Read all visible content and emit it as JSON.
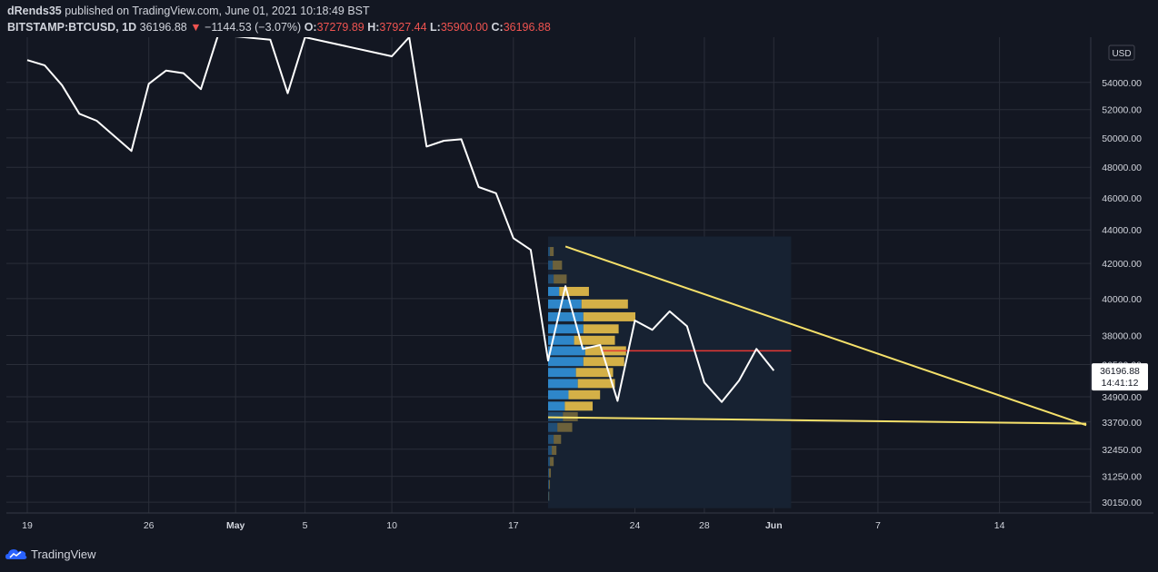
{
  "header": {
    "author": "dRends35",
    "published_text": "published on TradingView.com, June 01, 2021 10:18:49 BST",
    "symbol": "BITSTAMP:BTCUSD, 1D",
    "last_price": "36196.88",
    "change": "−1144.53 (−3.07%)",
    "open_label": "O:",
    "open_value": "37279.89",
    "high_label": "H:",
    "high_value": "37927.44",
    "low_label": "L:",
    "low_value": "35900.00",
    "close_label": "C:",
    "close_value": "36196.88"
  },
  "footer": {
    "brand": "TradingView"
  },
  "colors": {
    "background": "#131722",
    "grid": "#2a2e39",
    "price_line": "#ffffff",
    "trendline": "#f5e06a",
    "poc_line": "#e53935",
    "volume_up": "#2e86c9",
    "volume_down": "#d4b047",
    "profile_bg": "#172232",
    "axis_text": "#d1d4dc"
  },
  "chart_data": {
    "type": "line",
    "currency_label": "USD",
    "y_scale": "log",
    "ylim": [
      29700,
      57500
    ],
    "y_ticks": [
      {
        "value": 54000,
        "label": "54000.00"
      },
      {
        "value": 52000,
        "label": "52000.00"
      },
      {
        "value": 50000,
        "label": "50000.00"
      },
      {
        "value": 48000,
        "label": "48000.00"
      },
      {
        "value": 46000,
        "label": "46000.00"
      },
      {
        "value": 44000,
        "label": "44000.00"
      },
      {
        "value": 42000,
        "label": "42000.00"
      },
      {
        "value": 40000,
        "label": "40000.00"
      },
      {
        "value": 38000,
        "label": "38000.00"
      },
      {
        "value": 36500,
        "label": "36500.00"
      },
      {
        "value": 34900,
        "label": "34900.00"
      },
      {
        "value": 33700,
        "label": "33700.00"
      },
      {
        "value": 32450,
        "label": "32450.00"
      },
      {
        "value": 31250,
        "label": "31250.00"
      },
      {
        "value": 30150,
        "label": "30150.00"
      }
    ],
    "x_ticks": [
      {
        "label": "19",
        "date": "2021-04-19",
        "bold": false
      },
      {
        "label": "26",
        "date": "2021-04-26",
        "bold": false
      },
      {
        "label": "May",
        "date": "2021-05-01",
        "bold": true
      },
      {
        "label": "5",
        "date": "2021-05-05",
        "bold": false
      },
      {
        "label": "10",
        "date": "2021-05-10",
        "bold": false
      },
      {
        "label": "17",
        "date": "2021-05-17",
        "bold": false
      },
      {
        "label": "24",
        "date": "2021-05-24",
        "bold": false
      },
      {
        "label": "28",
        "date": "2021-05-28",
        "bold": false
      },
      {
        "label": "Jun",
        "date": "2021-06-01",
        "bold": true
      },
      {
        "label": "7",
        "date": "2021-06-07",
        "bold": false
      },
      {
        "label": "14",
        "date": "2021-06-14",
        "bold": false
      }
    ],
    "series": [
      {
        "values": [
          [
            "2021-04-19",
            55700
          ],
          [
            "2021-04-20",
            55300
          ],
          [
            "2021-04-21",
            53800
          ],
          [
            "2021-04-22",
            51700
          ],
          [
            "2021-04-23",
            51200
          ],
          [
            "2021-04-25",
            49100
          ],
          [
            "2021-04-26",
            53900
          ],
          [
            "2021-04-27",
            54900
          ],
          [
            "2021-04-28",
            54700
          ],
          [
            "2021-04-29",
            53500
          ],
          [
            "2021-04-30",
            57700
          ],
          [
            "2021-05-03",
            57300
          ],
          [
            "2021-05-04",
            53200
          ],
          [
            "2021-05-05",
            57500
          ],
          [
            "2021-05-10",
            56000
          ],
          [
            "2021-05-11",
            57500
          ],
          [
            "2021-05-12",
            49400
          ],
          [
            "2021-05-13",
            49800
          ],
          [
            "2021-05-14",
            49900
          ],
          [
            "2021-05-15",
            46700
          ],
          [
            "2021-05-16",
            46300
          ],
          [
            "2021-05-17",
            43500
          ],
          [
            "2021-05-18",
            42800
          ],
          [
            "2021-05-19",
            36700
          ],
          [
            "2021-05-20",
            40700
          ],
          [
            "2021-05-21",
            37300
          ],
          [
            "2021-05-22",
            37500
          ],
          [
            "2021-05-23",
            34700
          ],
          [
            "2021-05-24",
            38800
          ],
          [
            "2021-05-25",
            38300
          ],
          [
            "2021-05-26",
            39300
          ],
          [
            "2021-05-27",
            38500
          ],
          [
            "2021-05-28",
            35600
          ],
          [
            "2021-05-29",
            34650
          ],
          [
            "2021-05-30",
            35700
          ],
          [
            "2021-05-31",
            37300
          ],
          [
            "2021-06-01",
            36196.88
          ]
        ]
      }
    ],
    "last_price_label": "36196.88",
    "countdown_label": "14:41:12",
    "poc_line": {
      "price": 37200,
      "from": "2021-05-19",
      "to": "2021-06-02"
    },
    "trendlines": [
      {
        "from": [
          "2021-05-20",
          43000
        ],
        "to": [
          "2021-06-19",
          33550
        ]
      },
      {
        "from": [
          "2021-05-19",
          33920
        ],
        "to": [
          "2021-06-19",
          33620
        ]
      }
    ],
    "volume_profile": {
      "range_dates": [
        "2021-05-19",
        "2021-06-02"
      ],
      "range_prices": [
        29900,
        43600
      ],
      "rows": [
        {
          "price": 42700,
          "up": 0.1,
          "down": 0.2
        },
        {
          "price": 41900,
          "up": 0.25,
          "down": 0.5
        },
        {
          "price": 41100,
          "up": 0.3,
          "down": 0.7
        },
        {
          "price": 40400,
          "up": 0.6,
          "down": 1.6
        },
        {
          "price": 39700,
          "up": 1.8,
          "down": 2.5
        },
        {
          "price": 39000,
          "up": 1.9,
          "down": 2.8
        },
        {
          "price": 38350,
          "up": 1.9,
          "down": 1.9
        },
        {
          "price": 37750,
          "up": 1.4,
          "down": 2.2
        },
        {
          "price": 37200,
          "up": 2.0,
          "down": 2.2
        },
        {
          "price": 36650,
          "up": 1.9,
          "down": 2.2
        },
        {
          "price": 36100,
          "up": 1.5,
          "down": 2.0
        },
        {
          "price": 35550,
          "up": 1.6,
          "down": 2.0
        },
        {
          "price": 35000,
          "up": 1.1,
          "down": 1.7
        },
        {
          "price": 34450,
          "up": 0.9,
          "down": 1.5
        },
        {
          "price": 33950,
          "up": 0.8,
          "down": 0.8
        },
        {
          "price": 33450,
          "up": 0.5,
          "down": 0.8
        },
        {
          "price": 32900,
          "up": 0.3,
          "down": 0.4
        },
        {
          "price": 32400,
          "up": 0.2,
          "down": 0.25
        },
        {
          "price": 31900,
          "up": 0.1,
          "down": 0.2
        },
        {
          "price": 31400,
          "up": 0.05,
          "down": 0.1
        },
        {
          "price": 30900,
          "up": 0.05,
          "down": 0.05
        },
        {
          "price": 30400,
          "up": 0.03,
          "down": 0.03
        }
      ],
      "max_volume": 4.7
    }
  }
}
